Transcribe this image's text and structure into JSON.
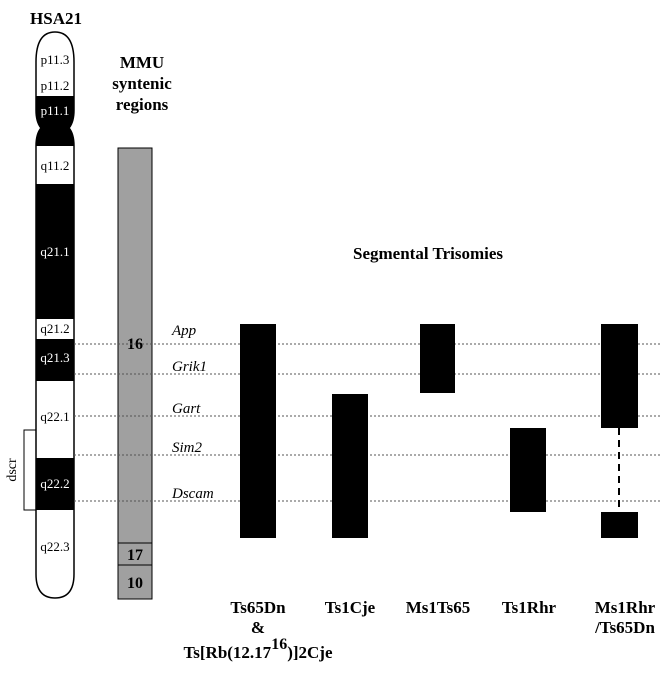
{
  "title": "HSA21",
  "syntenic_header": {
    "line1": "MMU",
    "line2": "syntenic",
    "line3": "regions"
  },
  "segmental_title": "Segmental Trisomies",
  "bands": [
    {
      "label": "p11.3",
      "color": "white"
    },
    {
      "label": "p11.2",
      "color": "white"
    },
    {
      "label": "p11.1",
      "color": "black"
    },
    {
      "label": "q11.2",
      "color": "white"
    },
    {
      "label": "q21.1",
      "color": "black"
    },
    {
      "label": "q21.2",
      "color": "white"
    },
    {
      "label": "q21.3",
      "color": "black"
    },
    {
      "label": "q22.1",
      "color": "white"
    },
    {
      "label": "q22.2",
      "color": "black"
    },
    {
      "label": "q22.3",
      "color": "white"
    }
  ],
  "dscr_label": "dscr",
  "mmu_regions": [
    "16",
    "17",
    "10"
  ],
  "genes": [
    "App",
    "Grik1",
    "Gart",
    "Sim2",
    "Dscam"
  ],
  "models": [
    {
      "name": "Ts65Dn",
      "extra1": "&",
      "extra2": "Ts[Rb(12.17",
      "extra2_sup": "16",
      "extra2_end": ")]2Cje"
    },
    {
      "name": "Ts1Cje"
    },
    {
      "name": "Ms1Ts65"
    },
    {
      "name": "Ts1Rhr"
    },
    {
      "name": "Ms1Rhr",
      "name_line2": "/Ts65Dn"
    }
  ],
  "colors": {
    "band_black": "#000000",
    "mmu_gray": "#a0a0a0",
    "dotted": "#555555"
  }
}
